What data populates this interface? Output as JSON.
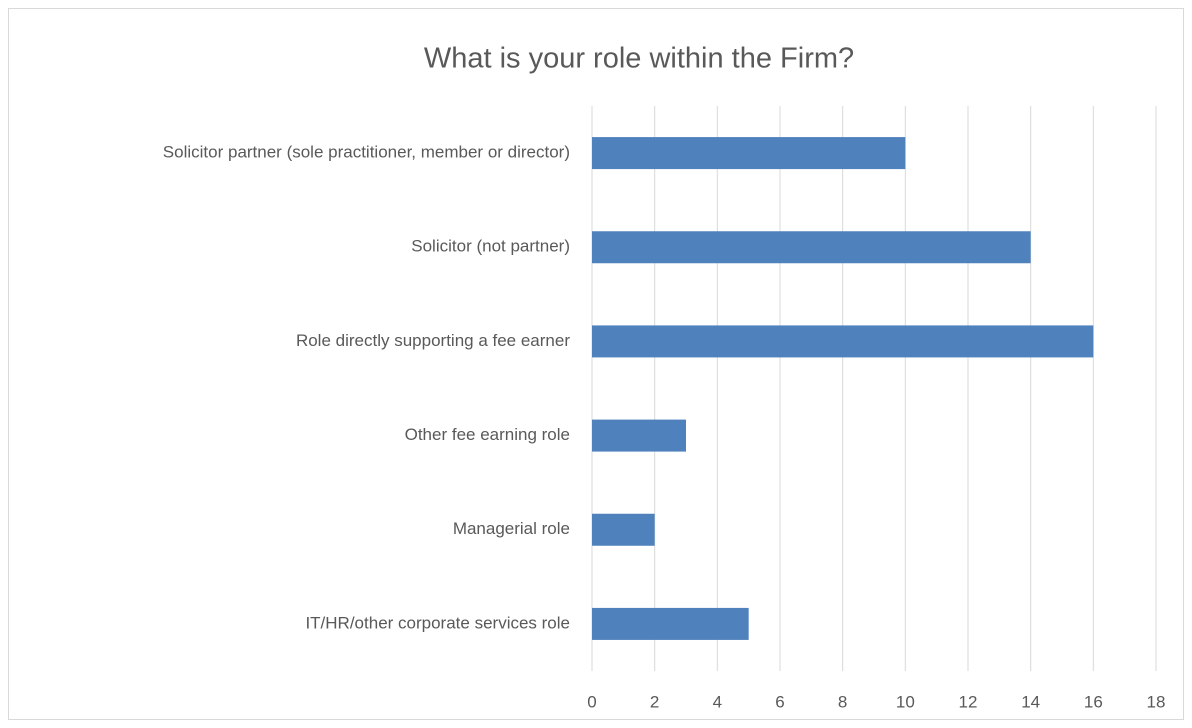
{
  "chart_data": {
    "type": "bar",
    "orientation": "horizontal",
    "title": "What is your role within the Firm?",
    "categories": [
      "Solicitor partner (sole practitioner, member or director)",
      "Solicitor (not partner)",
      "Role directly supporting a fee earner",
      "Other fee earning role",
      "Managerial role",
      "IT/HR/other corporate services role"
    ],
    "values": [
      10,
      14,
      16,
      3,
      2,
      5
    ],
    "color": "#4f81bd",
    "xlim": [
      0,
      18
    ],
    "xticks": [
      0,
      2,
      4,
      6,
      8,
      10,
      12,
      14,
      16,
      18
    ],
    "grid": true
  }
}
